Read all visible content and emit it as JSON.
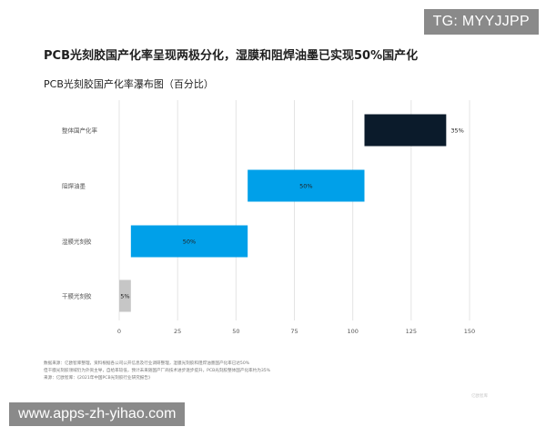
{
  "watermarks": {
    "top_right": "TG: MYYJJPP",
    "bottom_left": "www.apps-zh-yihao.com"
  },
  "header": {
    "title": "PCB光刻胶国产化率呈现两极分化，湿膜和阻焊油墨已实现50%国产化",
    "subtitle": "PCB光刻胶国产化率瀑布图（百分比）"
  },
  "notes": [
    "数据来源：亿欧智库整理，资料根据各公司公开信息及行业调研整理，湿膜光刻胶和阻焊油墨国产化率已达50%",
    "但干膜光刻胶领域仍为外资主导，自给率较低，预计未来随国产厂商技术进步逐步提升，PCB光刻胶整体国产化率约为35%",
    "来源：亿欧智库：《2021年中国PCB光刻胶行业研究报告》"
  ],
  "logo_text": "亿欧智库",
  "colors": {
    "total": "#0b1b2b",
    "mid": "#00a0e9",
    "small": "#c6c6c6",
    "grid": "#e4e4e4",
    "text": "#555555"
  },
  "chart_data": {
    "type": "bar",
    "subtype": "waterfall-horizontal",
    "categories": [
      "整体国产化率",
      "阻焊油墨",
      "湿膜光刻胶",
      "干膜光刻胶"
    ],
    "series": [
      {
        "values": [
          35,
          50,
          50,
          5
        ],
        "starts": [
          105,
          55,
          5,
          0
        ],
        "labels": [
          "35%",
          "50%",
          "50%",
          "5%"
        ],
        "label_positions": [
          "outside",
          "inside",
          "inside",
          "inside"
        ]
      }
    ],
    "x_ticks": [
      0,
      25,
      50,
      75,
      100,
      125,
      150
    ],
    "xlim": [
      0,
      150
    ],
    "xlabel": "",
    "ylabel": "",
    "grid": true,
    "legend": "none"
  }
}
